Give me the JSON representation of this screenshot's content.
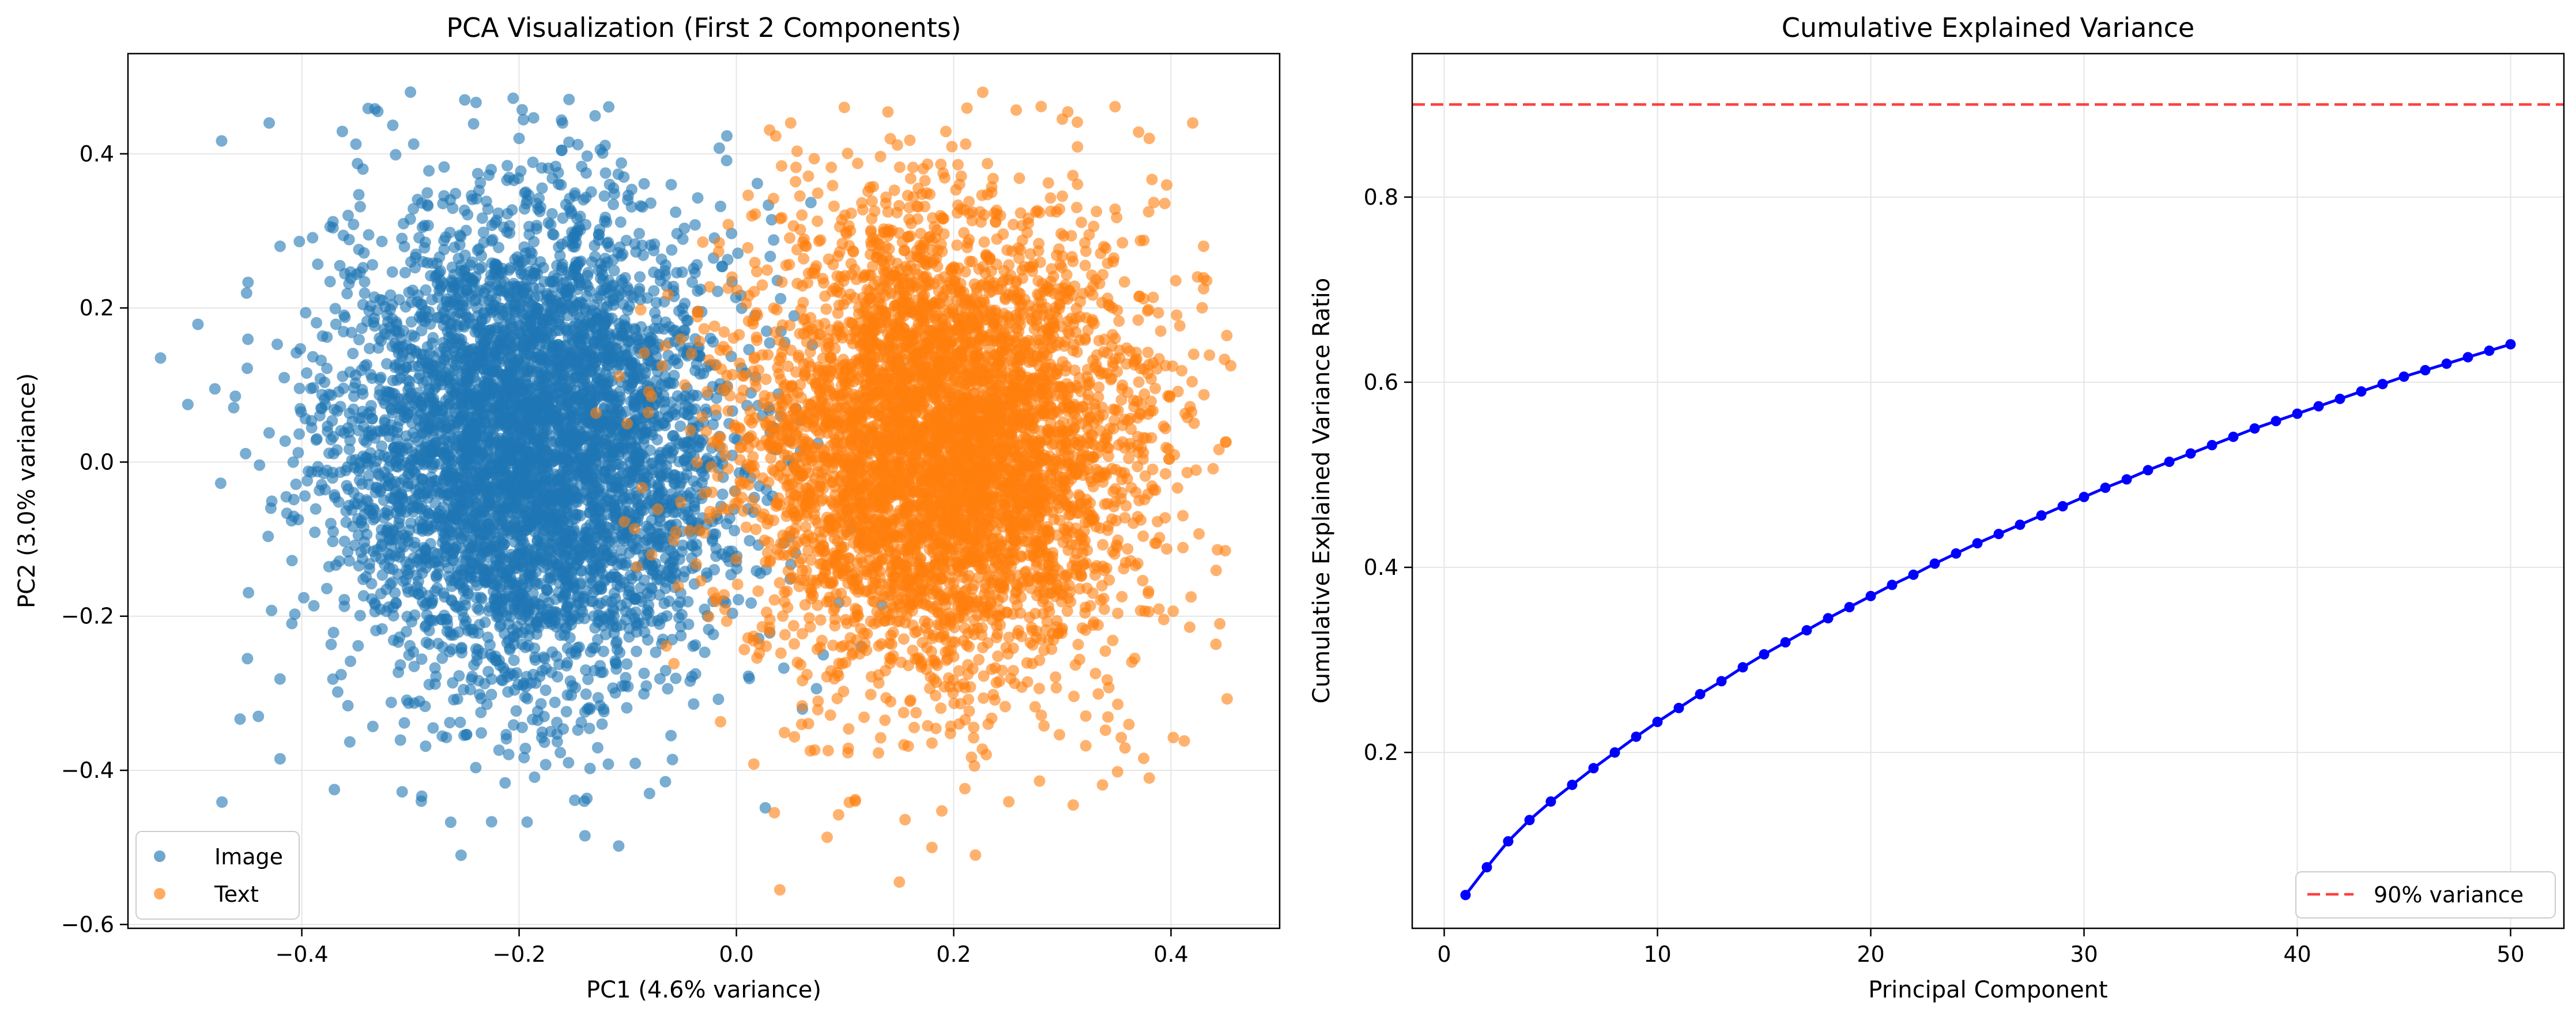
{
  "colors": {
    "image": "#1f77b4",
    "text": "#ff7f0e",
    "cumulative_line": "#0000ff",
    "threshold": "#ff0000",
    "grid": "#e6e6e6",
    "axis": "#000000"
  },
  "chart_data": [
    {
      "type": "scatter",
      "title": "PCA Visualization (First 2 Components)",
      "xlabel": "PC1 (4.6% variance)",
      "ylabel": "PC2 (3.0% variance)",
      "xlim": [
        -0.56,
        0.5
      ],
      "ylim": [
        -0.605,
        0.53
      ],
      "xticks": [
        -0.4,
        -0.2,
        0.0,
        0.2,
        0.4
      ],
      "xtick_labels": [
        "−0.4",
        "−0.2",
        "0.0",
        "0.2",
        "0.4"
      ],
      "yticks": [
        -0.6,
        -0.4,
        -0.2,
        0.0,
        0.2,
        0.4
      ],
      "ytick_labels": [
        "−0.6",
        "−0.4",
        "−0.2",
        "0.0",
        "0.2",
        "0.4"
      ],
      "grid": true,
      "legend_position": "lower-left",
      "series": [
        {
          "name": "Image",
          "color": "#1f77b4",
          "center": [
            -0.19,
            0.02
          ],
          "spread": [
            0.09,
            0.15
          ],
          "points": [
            [
              -0.53,
              0.135
            ],
            [
              -0.45,
              -0.255
            ],
            [
              -0.42,
              -0.385
            ],
            [
              -0.37,
              -0.425
            ],
            [
              -0.29,
              -0.44
            ],
            [
              -0.3,
              0.48
            ],
            [
              -0.25,
              0.47
            ],
            [
              -0.16,
              0.44
            ],
            [
              -0.43,
              0.44
            ],
            [
              -0.48,
              0.095
            ],
            [
              -0.44,
              -0.33
            ],
            [
              -0.14,
              -0.44
            ],
            [
              -0.08,
              -0.43
            ],
            [
              -0.06,
              0.36
            ],
            [
              -0.42,
              0.28
            ],
            [
              -0.33,
              0.455
            ],
            [
              -0.2,
              0.42
            ],
            [
              -0.1,
              0.34
            ]
          ]
        },
        {
          "name": "Text",
          "color": "#ff7f0e",
          "center": [
            0.19,
            0.02
          ],
          "spread": [
            0.09,
            0.15
          ],
          "points": [
            [
              0.455,
              0.125
            ],
            [
              0.45,
              -0.115
            ],
            [
              0.04,
              -0.555
            ],
            [
              0.15,
              -0.545
            ],
            [
              0.18,
              -0.5
            ],
            [
              0.22,
              -0.51
            ],
            [
              0.42,
              0.44
            ],
            [
              0.3,
              0.445
            ],
            [
              0.38,
              -0.41
            ],
            [
              0.31,
              -0.445
            ],
            [
              0.05,
              0.44
            ],
            [
              0.43,
              0.28
            ],
            [
              0.035,
              -0.455
            ],
            [
              0.43,
              0.225
            ],
            [
              0.38,
              0.42
            ]
          ]
        }
      ]
    },
    {
      "type": "line",
      "title": "Cumulative Explained Variance",
      "xlabel": "Principal Component",
      "ylabel": "Cumulative Explained Variance Ratio",
      "xlim": [
        -1.5,
        52.5
      ],
      "ylim": [
        0.01,
        0.955
      ],
      "xticks": [
        0,
        10,
        20,
        30,
        40,
        50
      ],
      "xtick_labels": [
        "0",
        "10",
        "20",
        "30",
        "40",
        "50"
      ],
      "yticks": [
        0.2,
        0.4,
        0.6,
        0.8
      ],
      "ytick_labels": [
        "0.2",
        "0.4",
        "0.6",
        "0.8"
      ],
      "grid": true,
      "legend_position": "lower-right",
      "x": [
        1,
        2,
        3,
        4,
        5,
        6,
        7,
        8,
        9,
        10,
        11,
        12,
        13,
        14,
        15,
        16,
        17,
        18,
        19,
        20,
        21,
        22,
        23,
        24,
        25,
        26,
        27,
        28,
        29,
        30,
        31,
        32,
        33,
        34,
        35,
        36,
        37,
        38,
        39,
        40,
        41,
        42,
        43,
        44,
        45,
        46,
        47,
        48,
        49,
        50
      ],
      "series": [
        {
          "name": "",
          "color": "#0000ff",
          "values": [
            0.046,
            0.076,
            0.104,
            0.127,
            0.147,
            0.165,
            0.183,
            0.2,
            0.217,
            0.233,
            0.248,
            0.263,
            0.277,
            0.292,
            0.306,
            0.319,
            0.332,
            0.345,
            0.357,
            0.369,
            0.381,
            0.392,
            0.404,
            0.415,
            0.426,
            0.436,
            0.446,
            0.456,
            0.466,
            0.476,
            0.486,
            0.495,
            0.505,
            0.514,
            0.523,
            0.532,
            0.541,
            0.55,
            0.558,
            0.566,
            0.574,
            0.582,
            0.59,
            0.598,
            0.606,
            0.613,
            0.62,
            0.627,
            0.634,
            0.641
          ]
        }
      ],
      "reference_line": {
        "name": "90% variance",
        "y": 0.9,
        "color": "#ff0000",
        "style": "dashed"
      }
    }
  ]
}
